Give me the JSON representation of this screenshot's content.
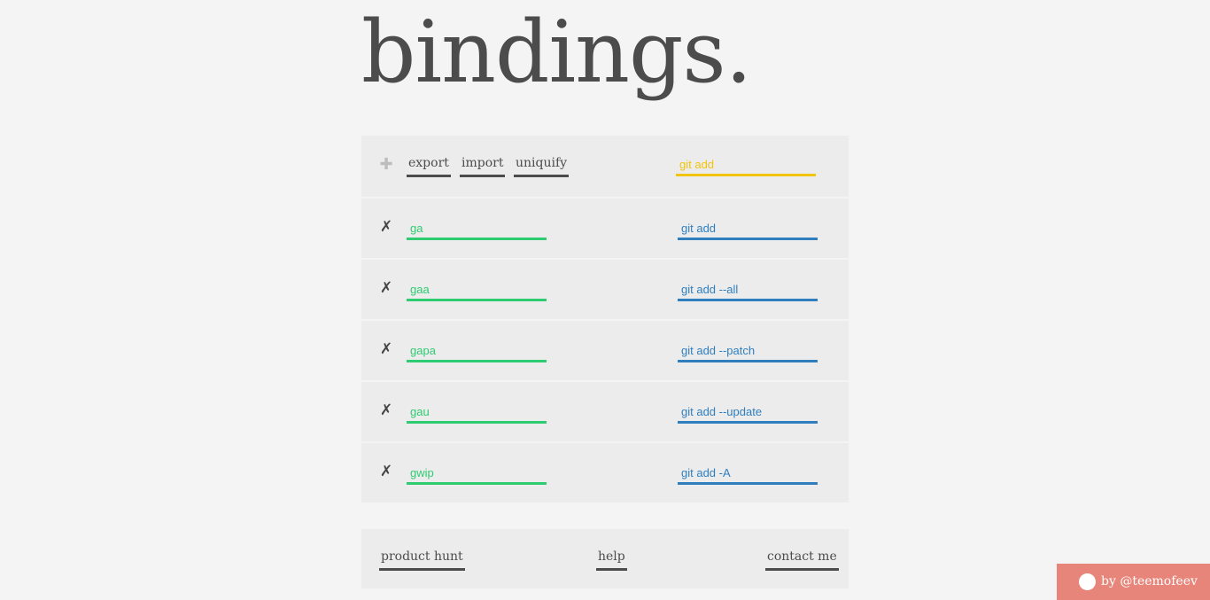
{
  "header": {
    "title": "bindings."
  },
  "toolbar": {
    "add_icon": "plus-icon",
    "export_label": "export",
    "import_label": "import",
    "uniquify_label": "uniquify",
    "filter_value": "git add"
  },
  "bindings": [
    {
      "remove_icon": "x-icon",
      "alias": "ga",
      "command": "git add"
    },
    {
      "remove_icon": "x-icon",
      "alias": "gaa",
      "command": "git add --all"
    },
    {
      "remove_icon": "x-icon",
      "alias": "gapa",
      "command": "git add --patch"
    },
    {
      "remove_icon": "x-icon",
      "alias": "gau",
      "command": "git add --update"
    },
    {
      "remove_icon": "x-icon",
      "alias": "gwip",
      "command": "git add -A"
    }
  ],
  "footer": {
    "product_hunt": "product hunt",
    "help": "help",
    "contact": "contact me"
  },
  "credit": {
    "text": "by @teemofeev"
  },
  "colors": {
    "alias": "#2ecc71",
    "command": "#2f7fbf",
    "filter": "#f1c40f",
    "credit_background": "#e8857a"
  }
}
